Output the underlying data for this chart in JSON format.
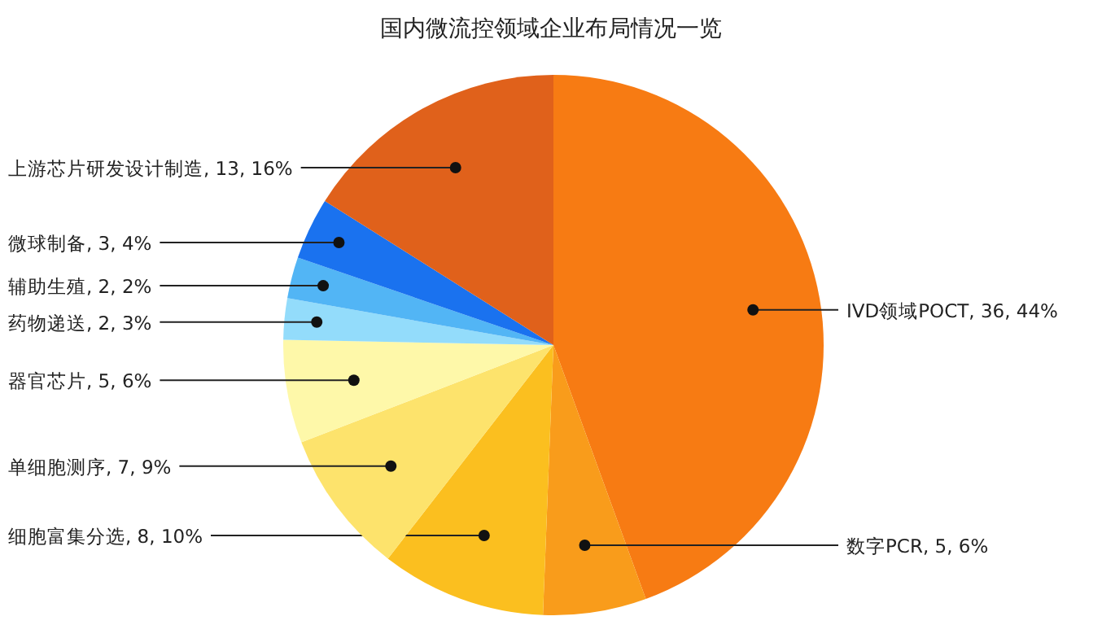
{
  "chart_data": {
    "type": "pie",
    "title": "国内微流控领域企业布局情况一览",
    "categories": [
      "IVD领域POCT",
      "数字PCR",
      "细胞富集分选",
      "单细胞测序",
      "器官芯片",
      "药物递送",
      "辅助生殖",
      "微球制备",
      "上游芯片研发设计制造"
    ],
    "values": [
      36,
      5,
      8,
      7,
      5,
      2,
      2,
      3,
      13
    ],
    "value_labels": [
      "36, 44%",
      "5, 6%",
      "8, 10%",
      "7, 9%",
      "5, 6%",
      "2, 3%",
      "2, 2%",
      "3, 4%",
      "13, 16%"
    ],
    "colors": [
      "#f77b13",
      "#f99c1b",
      "#fbbf1f",
      "#fde36c",
      "#fef8a9",
      "#93dcfb",
      "#52b5f5",
      "#1a72ef",
      "#e0611b"
    ]
  }
}
